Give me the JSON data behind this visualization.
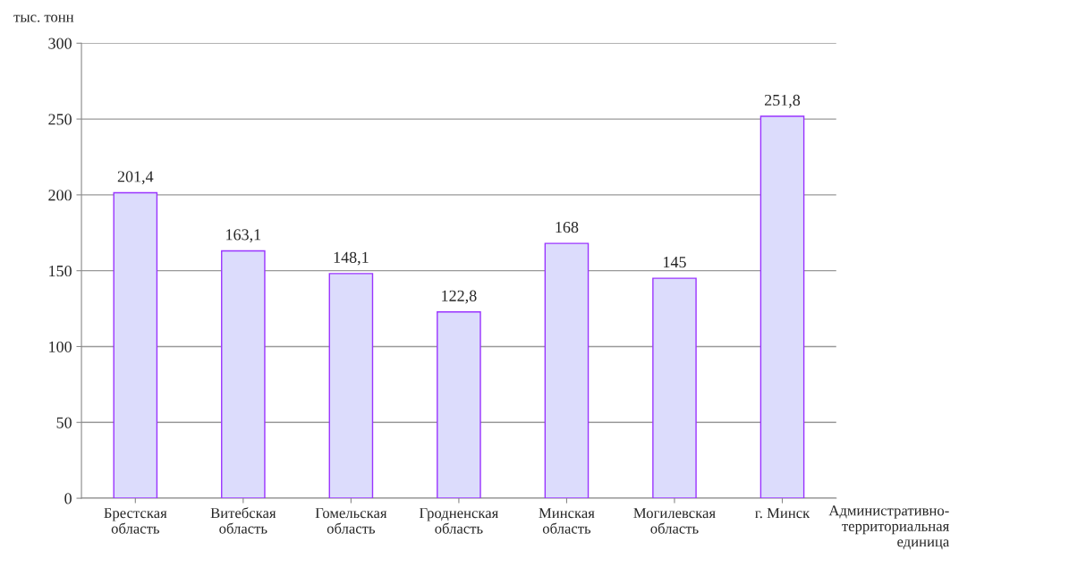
{
  "chart_data": {
    "type": "bar",
    "ylabel": "тыс. тонн",
    "xlabel": "Административно-\nтерриториальная\nединица",
    "categories": [
      "Брестская\nобласть",
      "Витебская\nобласть",
      "Гомельская\nобласть",
      "Гродненская\nобласть",
      "Минская\nобласть",
      "Могилевская\nобласть",
      "г. Минск"
    ],
    "values": [
      201.4,
      163.1,
      148.1,
      122.8,
      168,
      145,
      251.8
    ],
    "value_labels": [
      "201,4",
      "163,1",
      "148,1",
      "122,8",
      "168",
      "145",
      "251,8"
    ],
    "color": "#dcdcfc",
    "ylim": [
      0,
      300
    ],
    "yticks": [
      0,
      50,
      100,
      150,
      200,
      250,
      300
    ],
    "grid": "y",
    "legend": false
  }
}
